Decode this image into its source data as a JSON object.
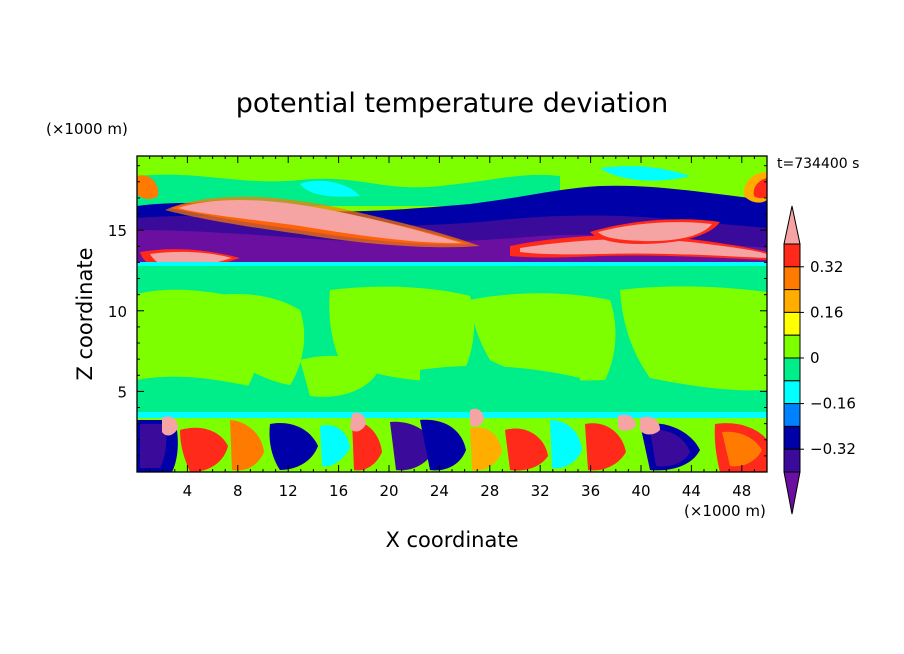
{
  "chart_data": {
    "type": "heatmap",
    "title": "potential temperature deviation",
    "xlabel": "X coordinate",
    "ylabel": "Z coordinate",
    "x_unit": "(×1000 m)",
    "y_unit": "(×1000 m)",
    "time_label": "t=734400 s",
    "xlim": [
      0,
      50
    ],
    "ylim": [
      0,
      19.6
    ],
    "x_ticks": [
      4,
      8,
      12,
      16,
      20,
      24,
      28,
      32,
      36,
      40,
      44,
      48
    ],
    "y_ticks": [
      5,
      10,
      15
    ],
    "colorbar": {
      "levels": [
        -0.4,
        -0.32,
        -0.24,
        -0.16,
        -0.08,
        0,
        0.08,
        0.16,
        0.24,
        0.32,
        0.4
      ],
      "tick_labels": [
        "0.32",
        "0.16",
        "0",
        "−0.16",
        "−0.32"
      ],
      "tick_values": [
        0.32,
        0.16,
        0,
        -0.16,
        -0.32
      ],
      "colors_top_to_bottom": [
        "#f5a3a3",
        "#ff2a1a",
        "#ff7a00",
        "#ffae00",
        "#ffff00",
        "#7dff00",
        "#00ee8a",
        "#00ffff",
        "#0082ff",
        "#0000a8",
        "#3a0a9a",
        "#6a0fa0"
      ]
    },
    "regions": [
      {
        "level": "0 to 0.08",
        "x": [
          0,
          50
        ],
        "z": [
          3.7,
          12.8
        ],
        "color": "#7dff00"
      },
      {
        "level": "-0.08 to 0",
        "x": [
          0,
          50
        ],
        "z": [
          4.5,
          12.5
        ],
        "color": "#00ee8a"
      },
      {
        "level": "below -0.4",
        "x": [
          2,
          48
        ],
        "z": [
          13.2,
          15.8
        ],
        "color": "#6a0fa0"
      },
      {
        "level": "above 0.4",
        "x": [
          6,
          20
        ],
        "z": [
          15.8,
          17.6
        ],
        "color": "#f5a3a3"
      },
      {
        "level": "above 0.4",
        "x": [
          34,
          46
        ],
        "z": [
          14.2,
          15.6
        ],
        "color": "#f5a3a3"
      },
      {
        "level": "mixed",
        "x": [
          0,
          50
        ],
        "z": [
          0,
          3.5
        ],
        "color": "#ff2a1a"
      }
    ]
  }
}
